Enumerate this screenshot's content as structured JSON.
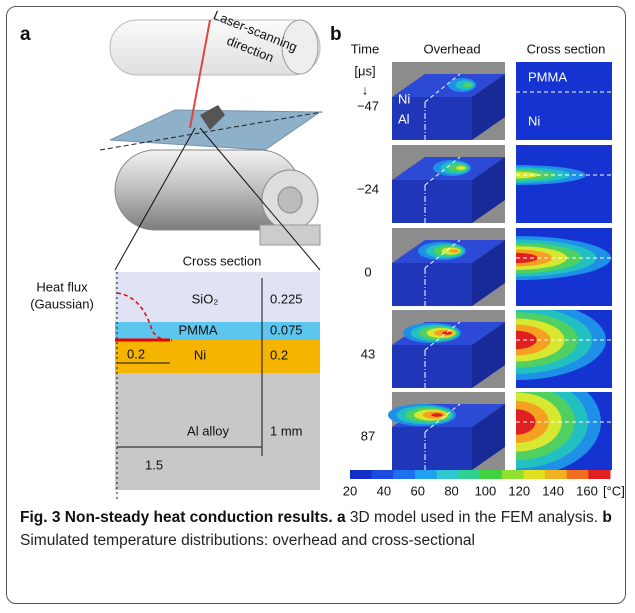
{
  "panel_a": {
    "label": "a",
    "laser_label": [
      "Laser-scanning",
      "direction"
    ],
    "cross_section_title": "Cross section",
    "heat_flux_label": [
      "Heat flux",
      "(Gaussian)"
    ],
    "layers": [
      {
        "name": "SiO₂",
        "thickness": "0.225"
      },
      {
        "name": "PMMA",
        "thickness": "0.075"
      },
      {
        "name": "Ni",
        "thickness": "0.2"
      },
      {
        "name": "Al alloy",
        "thickness": "1 mm"
      }
    ],
    "flux_width": "0.2",
    "width": "1.5"
  },
  "panel_b": {
    "label": "b",
    "time_header": [
      "Time",
      "[μs]",
      "↓"
    ],
    "overhead_header": "Overhead",
    "cross_header": "Cross section",
    "times": [
      "−47",
      "−24",
      "0",
      "43",
      "87"
    ],
    "overhead_labels": [
      "Ni",
      "Al"
    ],
    "cross_labels": [
      "PMMA",
      "Ni"
    ],
    "colorbar": {
      "ticks": [
        20,
        40,
        60,
        80,
        100,
        120,
        140,
        160
      ],
      "unit": "[°C]"
    }
  },
  "caption": {
    "figure": "Fig. 3",
    "title": "Non-steady heat conduction results.",
    "a_label": "a",
    "a_text": "3D model used in the FEM analysis.",
    "b_label": "b",
    "b_text": "Simulated temperature distributions: overhead and cross-sectional"
  }
}
